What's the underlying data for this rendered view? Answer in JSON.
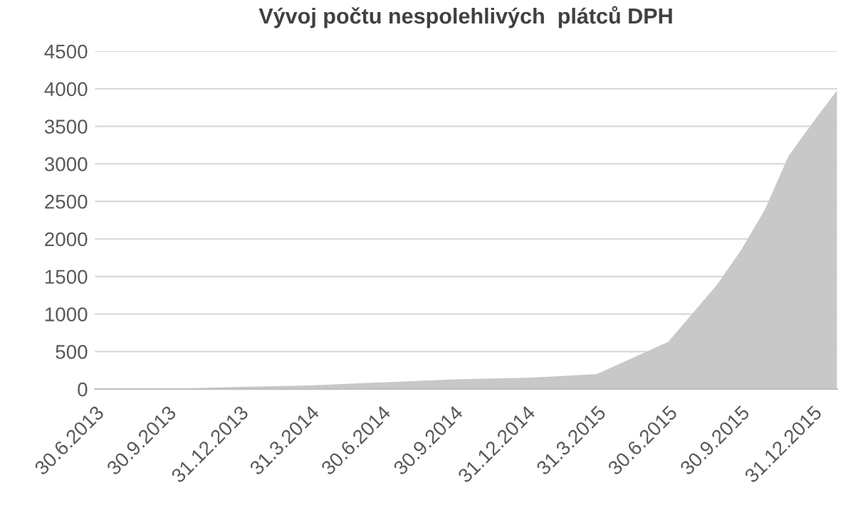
{
  "chart_data": {
    "type": "area",
    "title": "Vývoj počtu nespolehlivých  plátců DPH",
    "x": [
      "2013-06-30",
      "2013-09-30",
      "2013-12-31",
      "2014-03-31",
      "2014-06-30",
      "2014-09-30",
      "2014-12-31",
      "2015-03-31",
      "2015-06-30",
      "2015-08-31",
      "2015-09-30",
      "2015-10-31",
      "2015-11-30",
      "2015-12-31",
      "2016-01-31"
    ],
    "series": [
      {
        "color": "#c8c8c8",
        "values": [
          0,
          0,
          30,
          50,
          90,
          130,
          150,
          200,
          630,
          1390,
          1840,
          2390,
          3100,
          3550,
          3980
        ]
      }
    ],
    "xlim": [
      "2013-06-30",
      "2016-01-31"
    ],
    "xticks": [
      {
        "value": "2013-06-30",
        "label": "30.6.2013"
      },
      {
        "value": "2013-09-30",
        "label": "30.9.2013"
      },
      {
        "value": "2013-12-31",
        "label": "31.12.2013"
      },
      {
        "value": "2014-03-31",
        "label": "31.3.2014"
      },
      {
        "value": "2014-06-30",
        "label": "30.6.2014"
      },
      {
        "value": "2014-09-30",
        "label": "30.9.2014"
      },
      {
        "value": "2014-12-31",
        "label": "31.12.2014"
      },
      {
        "value": "2015-03-31",
        "label": "31.3.2015"
      },
      {
        "value": "2015-06-30",
        "label": "30.6.2015"
      },
      {
        "value": "2015-09-30",
        "label": "30.9.2015"
      },
      {
        "value": "2015-12-31",
        "label": "31.12.2015"
      }
    ],
    "ylim": [
      0,
      4500
    ],
    "yticks": [
      0,
      500,
      1000,
      1500,
      2000,
      2500,
      3000,
      3500,
      4000,
      4500
    ],
    "grid": "y"
  }
}
